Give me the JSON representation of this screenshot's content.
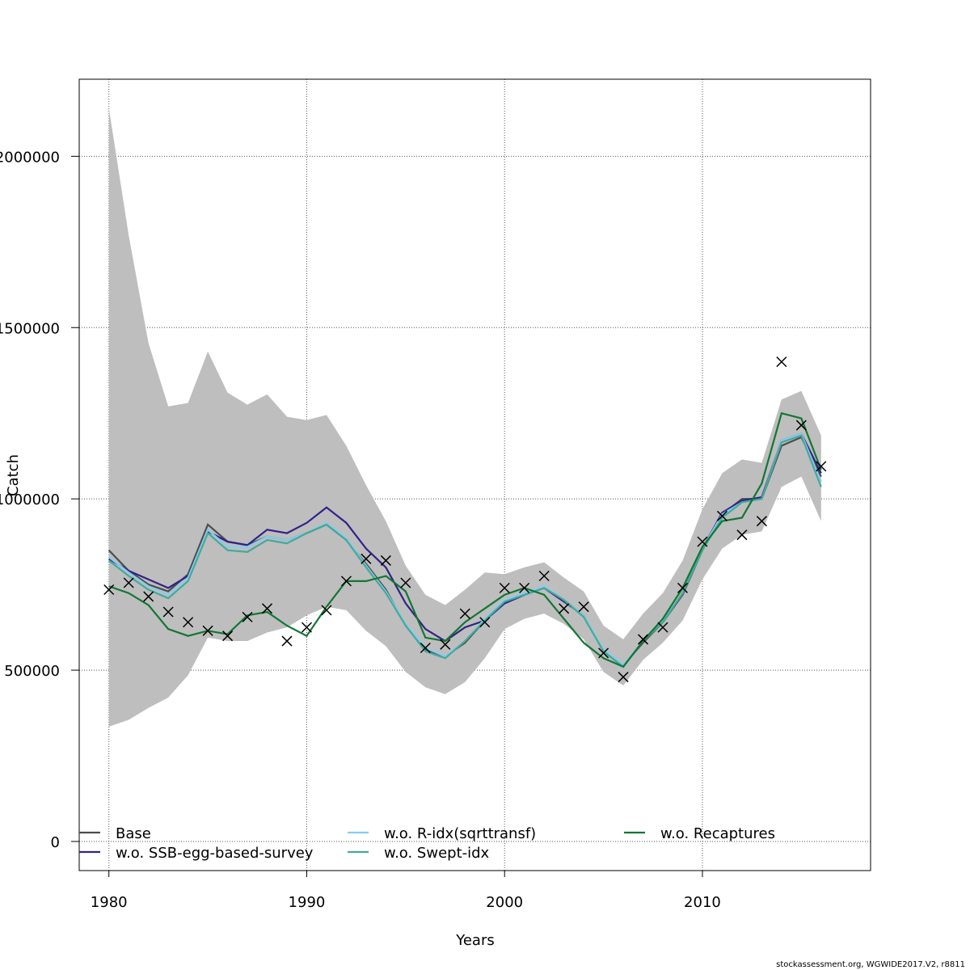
{
  "chart_data": {
    "type": "line",
    "title": "",
    "xlabel": "Years",
    "ylabel": "Catch",
    "xlim": [
      1978.5,
      2018.5
    ],
    "ylim": [
      -85000,
      2225000
    ],
    "grid": true,
    "legend_position": "bottom",
    "x_ticks": [
      1980,
      1990,
      2000,
      2010
    ],
    "x_tick_labels": [
      "1980",
      "1990",
      "2000",
      "2010"
    ],
    "y_ticks": [
      0,
      500000,
      1000000,
      1500000,
      2000000
    ],
    "y_tick_labels": [
      "0",
      "500000",
      "1000000",
      "1500000",
      "2000000"
    ],
    "x": [
      1980,
      1981,
      1982,
      1983,
      1984,
      1985,
      1986,
      1987,
      1988,
      1989,
      1990,
      1991,
      1992,
      1993,
      1994,
      1995,
      1996,
      1997,
      1998,
      1999,
      2000,
      2001,
      2002,
      2003,
      2004,
      2005,
      2006,
      2007,
      2008,
      2009,
      2010,
      2011,
      2012,
      2013,
      2014,
      2015,
      2016
    ],
    "confidence_band": {
      "color": "#bebebe",
      "upper": [
        2140000,
        1770000,
        1455000,
        1270000,
        1280000,
        1430000,
        1310000,
        1275000,
        1305000,
        1240000,
        1230000,
        1245000,
        1155000,
        1040000,
        935000,
        805000,
        720000,
        690000,
        735000,
        785000,
        780000,
        800000,
        815000,
        770000,
        730000,
        630000,
        590000,
        665000,
        725000,
        820000,
        970000,
        1075000,
        1115000,
        1105000,
        1290000,
        1315000,
        1185000
      ],
      "lower": [
        335000,
        355000,
        390000,
        420000,
        485000,
        595000,
        585000,
        585000,
        610000,
        625000,
        660000,
        685000,
        675000,
        615000,
        570000,
        495000,
        450000,
        430000,
        465000,
        535000,
        620000,
        650000,
        665000,
        635000,
        590000,
        495000,
        455000,
        530000,
        580000,
        645000,
        765000,
        855000,
        895000,
        905000,
        1035000,
        1065000,
        935000
      ]
    },
    "series": [
      {
        "name": "Base",
        "color": "#4d4d4d",
        "values": [
          850000,
          790000,
          750000,
          730000,
          780000,
          925000,
          875000,
          865000,
          890000,
          880000,
          900000,
          925000,
          880000,
          810000,
          735000,
          630000,
          560000,
          540000,
          580000,
          645000,
          695000,
          720000,
          740000,
          705000,
          660000,
          555000,
          515000,
          580000,
          640000,
          720000,
          850000,
          955000,
          1000000,
          1000000,
          1155000,
          1180000,
          1065000
        ]
      },
      {
        "name": "w.o. SSB-egg-based-survey",
        "color": "#332288",
        "values": [
          825000,
          790000,
          765000,
          740000,
          775000,
          905000,
          875000,
          865000,
          910000,
          900000,
          930000,
          975000,
          930000,
          855000,
          800000,
          695000,
          620000,
          585000,
          625000,
          645000,
          695000,
          720000,
          740000,
          700000,
          660000,
          555000,
          510000,
          585000,
          640000,
          725000,
          855000,
          960000,
          995000,
          1005000,
          1170000,
          1190000,
          1075000
        ]
      },
      {
        "name": "w.o. R-idx(sqrttransf)",
        "color": "#88ccee",
        "values": [
          830000,
          785000,
          745000,
          720000,
          770000,
          910000,
          860000,
          860000,
          890000,
          880000,
          900000,
          930000,
          885000,
          805000,
          730000,
          635000,
          565000,
          540000,
          585000,
          650000,
          705000,
          725000,
          745000,
          705000,
          660000,
          560000,
          515000,
          585000,
          645000,
          725000,
          855000,
          955000,
          990000,
          1000000,
          1170000,
          1190000,
          1050000
        ]
      },
      {
        "name": "w.o. Swept-idx",
        "color": "#44aa99",
        "values": [
          820000,
          775000,
          735000,
          710000,
          760000,
          900000,
          850000,
          845000,
          880000,
          870000,
          900000,
          925000,
          880000,
          800000,
          725000,
          630000,
          555000,
          535000,
          585000,
          645000,
          700000,
          720000,
          740000,
          705000,
          655000,
          555000,
          510000,
          585000,
          640000,
          725000,
          850000,
          945000,
          990000,
          1000000,
          1165000,
          1185000,
          1035000
        ]
      },
      {
        "name": "w.o. Recaptures",
        "color": "#117733",
        "values": [
          745000,
          725000,
          690000,
          620000,
          600000,
          615000,
          605000,
          660000,
          670000,
          630000,
          600000,
          685000,
          760000,
          760000,
          775000,
          730000,
          595000,
          585000,
          640000,
          680000,
          720000,
          740000,
          720000,
          650000,
          580000,
          535000,
          510000,
          585000,
          650000,
          740000,
          860000,
          935000,
          945000,
          1045000,
          1250000,
          1235000,
          1085000
        ]
      }
    ],
    "observed": {
      "marker": "x",
      "color": "#000000",
      "values": [
        735000,
        755000,
        715000,
        670000,
        640000,
        615000,
        600000,
        655000,
        680000,
        585000,
        625000,
        675000,
        760000,
        825000,
        820000,
        755000,
        565000,
        575000,
        665000,
        640000,
        740000,
        740000,
        775000,
        680000,
        685000,
        550000,
        480000,
        590000,
        625000,
        740000,
        875000,
        950000,
        895000,
        935000,
        1400000,
        1215000,
        1095000
      ]
    }
  },
  "footer": "stockassessment.org, WGWIDE2017.V2, r8811"
}
